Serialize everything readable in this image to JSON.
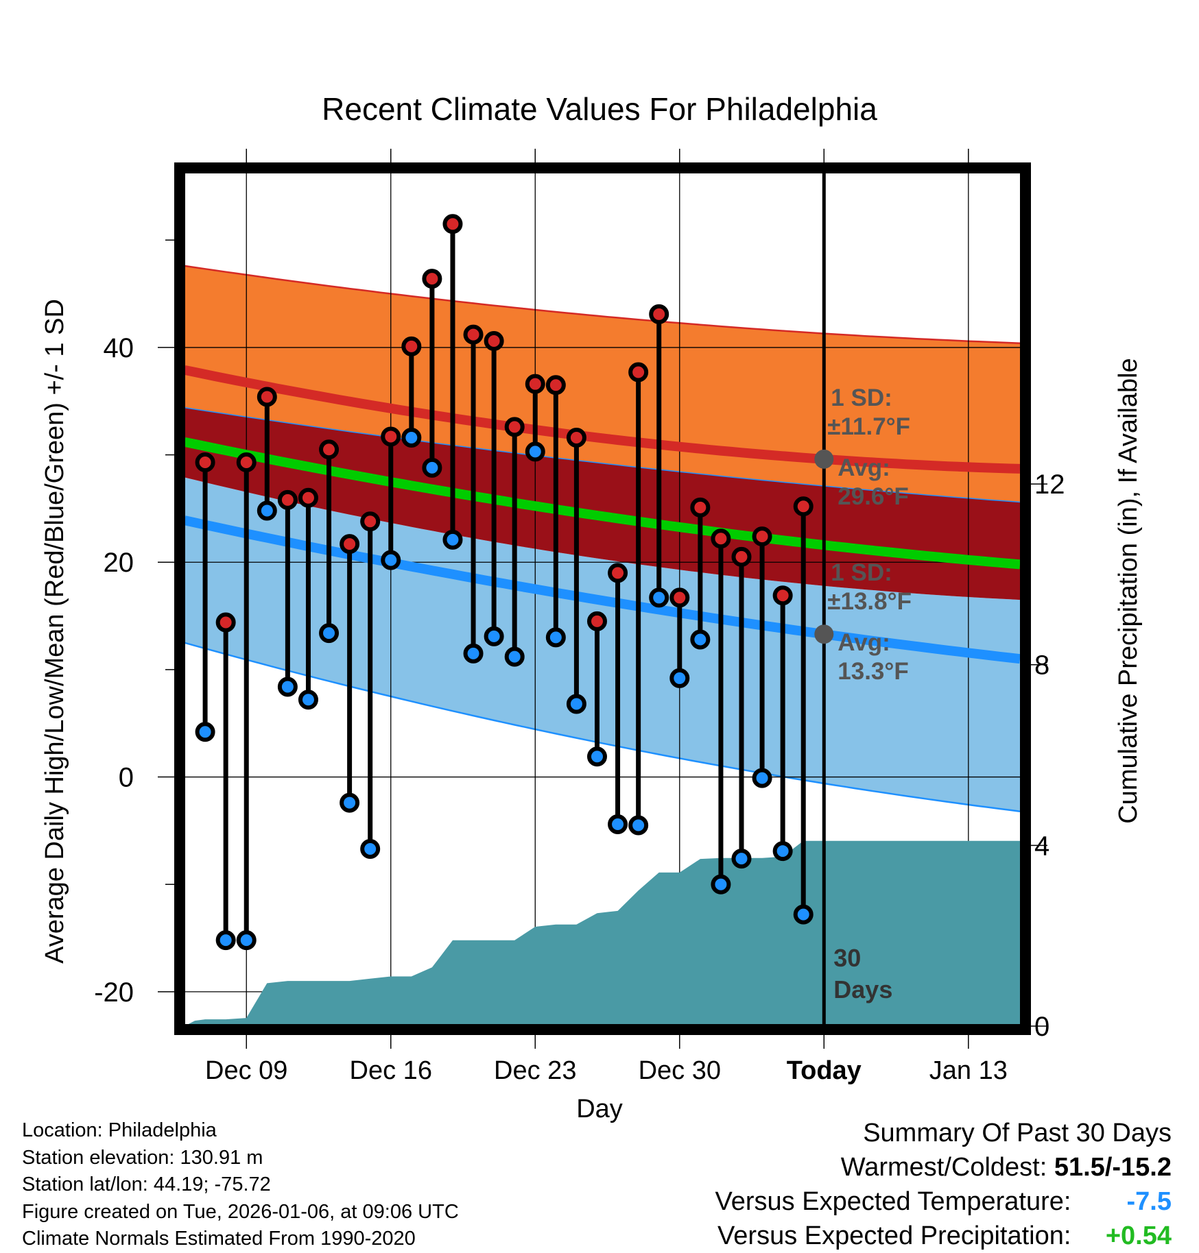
{
  "chart_data": {
    "type": "line",
    "title": "Recent Climate Values For Philadelphia",
    "xlabel": "Day",
    "ylabel": "Average Daily High/Low/Mean (Red/Blue/Green) +/- 1 SD",
    "y2label": "Cumulative Precipitation (in), If Available",
    "x_ticks": [
      {
        "day": 9,
        "label": "Dec 09"
      },
      {
        "day": 16,
        "label": "Dec 16"
      },
      {
        "day": 23,
        "label": "Dec 23"
      },
      {
        "day": 30,
        "label": "Dec 30"
      },
      {
        "day": 37,
        "label": "Today"
      },
      {
        "day": 44,
        "label": "Jan 13"
      }
    ],
    "xlim": [
      5.8,
      46.6
    ],
    "ylim": [
      -23.2,
      56.4
    ],
    "y_ticks": [
      -20,
      0,
      20,
      40
    ],
    "y_minor_ticks": [
      -10,
      10,
      30,
      50
    ],
    "y2lim": [
      0,
      18.92
    ],
    "y2_ticks": [
      0,
      4,
      8,
      12
    ],
    "today_day": 37,
    "today_label": "30\nDays",
    "normals": {
      "day": [
        6,
        37,
        46.5
      ],
      "high_mean": [
        37.9,
        29.6,
        28.7
      ],
      "high_upper": [
        47.6,
        41.3,
        40.4
      ],
      "high_lower": [
        34.4,
        27.1,
        25.6
      ],
      "low_mean": [
        23.9,
        13.3,
        11.0
      ],
      "low_upper": [
        27.9,
        17.8,
        16.5
      ],
      "low_lower": [
        12.5,
        -0.6,
        -3.2
      ],
      "mean_temp": [
        31.2,
        21.6,
        19.8
      ]
    },
    "series": [
      {
        "name": "Daily High",
        "color": "#d62728",
        "days": [
          7,
          8,
          9,
          10,
          11,
          12,
          13,
          14,
          15,
          16,
          17,
          18,
          19,
          20,
          21,
          22,
          23,
          24,
          25,
          26,
          27,
          28,
          29,
          30,
          31,
          32,
          33,
          34,
          35,
          36
        ],
        "values": [
          29.3,
          14.4,
          29.3,
          35.4,
          25.8,
          26.0,
          30.5,
          21.7,
          23.8,
          31.7,
          40.1,
          46.4,
          51.5,
          41.2,
          40.6,
          32.6,
          36.6,
          36.5,
          31.6,
          14.5,
          19.0,
          37.7,
          43.1,
          16.7,
          25.1,
          22.2,
          20.5,
          22.4,
          16.9,
          25.2
        ]
      },
      {
        "name": "Daily Low",
        "color": "#1e90ff",
        "days": [
          7,
          8,
          9,
          10,
          11,
          12,
          13,
          14,
          15,
          16,
          17,
          18,
          19,
          20,
          21,
          22,
          23,
          24,
          25,
          26,
          27,
          28,
          29,
          30,
          31,
          32,
          33,
          34,
          35,
          36
        ],
        "values": [
          4.2,
          -15.2,
          -15.2,
          24.8,
          8.4,
          7.2,
          13.4,
          -2.4,
          -6.7,
          20.2,
          31.6,
          28.8,
          22.1,
          11.5,
          13.1,
          11.2,
          30.3,
          13.0,
          6.8,
          1.9,
          -4.4,
          -4.5,
          16.7,
          9.2,
          12.8,
          -10.0,
          -7.6,
          -0.1,
          -6.9,
          -12.8
        ]
      },
      {
        "name": "Cumulative Precipitation",
        "color": "#4a9aa5",
        "days": [
          6,
          6.5,
          7,
          8,
          9,
          10,
          11,
          12,
          13,
          14,
          15,
          16,
          17,
          18,
          19,
          20,
          21,
          22,
          23,
          24,
          25,
          26,
          27,
          28,
          29,
          30,
          31,
          32,
          33,
          34,
          35,
          36,
          37,
          38,
          40,
          46.5
        ],
        "values": [
          0.0,
          0.12,
          0.15,
          0.15,
          0.18,
          0.95,
          1.0,
          1.0,
          1.0,
          1.0,
          1.05,
          1.1,
          1.1,
          1.3,
          1.9,
          1.9,
          1.9,
          1.9,
          2.2,
          2.25,
          2.25,
          2.5,
          2.55,
          3.0,
          3.4,
          3.4,
          3.7,
          3.72,
          3.72,
          3.72,
          3.75,
          4.1,
          4.1,
          4.1,
          4.1,
          4.1
        ]
      }
    ],
    "annotations": [
      {
        "label": "1 SD:",
        "text": "±11.7°F",
        "avg_label": "Avg:",
        "avg_text": "29.6°F",
        "anchor_value": 29.6
      },
      {
        "label": "1 SD:",
        "text": "±13.8°F",
        "avg_label": "Avg:",
        "avg_text": "13.3°F",
        "anchor_value": 13.3
      }
    ]
  },
  "info": {
    "location": "Location: Philadelphia",
    "elevation": "Station elevation: 130.91 m",
    "latlon": "Station lat/lon: 44.19; -75.72",
    "created": "Figure created on Tue, 2026-01-06, at 09:06 UTC",
    "normals": "Climate Normals Estimated From 1990-2020"
  },
  "summary": {
    "title": "Summary Of Past 30 Days",
    "warm_cold_label": "Warmest/Coldest:",
    "warm_cold_value": "51.5/-15.2",
    "temp_label": "Versus Expected Temperature:",
    "temp_value": "-7.5",
    "temp_color": "#1e90ff",
    "precip_label": "Versus Expected Precipitation:",
    "precip_value": "+0.54",
    "precip_color": "#22bb22"
  },
  "colors": {
    "high_band": "#f47c2e",
    "high_line": "#d42a26",
    "overlap_band": "#9a1018",
    "mean_line": "#00cc00",
    "low_band": "#87c2e8",
    "low_line": "#1e90ff",
    "precip_fill": "#4a9aa5",
    "annotation": "#555555"
  }
}
